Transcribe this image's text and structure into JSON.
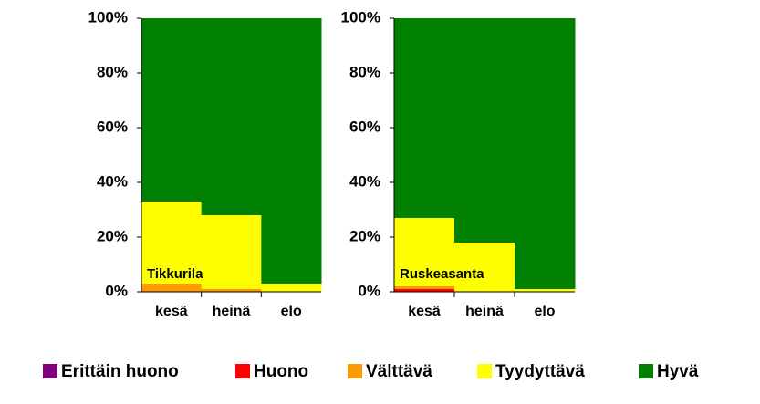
{
  "chart_data": [
    {
      "type": "bar",
      "stacked": true,
      "label": "Tikkurila",
      "categories": [
        "kesä",
        "heinä",
        "elo"
      ],
      "ylim": [
        0,
        100
      ],
      "yticks": [
        {
          "value": 0,
          "label": "0%"
        },
        {
          "value": 20,
          "label": "20%"
        },
        {
          "value": 40,
          "label": "40%"
        },
        {
          "value": 60,
          "label": "60%"
        },
        {
          "value": 80,
          "label": "80%"
        },
        {
          "value": 100,
          "label": "100%"
        }
      ],
      "series": [
        {
          "values": [
            0,
            0,
            0
          ]
        },
        {
          "values": [
            0,
            0,
            0
          ]
        },
        {
          "values": [
            3,
            1,
            0
          ]
        },
        {
          "values": [
            30,
            27,
            3
          ]
        },
        {
          "values": [
            67,
            72,
            97
          ]
        }
      ]
    },
    {
      "type": "bar",
      "stacked": true,
      "label": "Ruskeasanta",
      "categories": [
        "kesä",
        "heinä",
        "elo"
      ],
      "ylim": [
        0,
        100
      ],
      "yticks": [
        {
          "value": 0,
          "label": "0%"
        },
        {
          "value": 20,
          "label": "20%"
        },
        {
          "value": 40,
          "label": "40%"
        },
        {
          "value": 60,
          "label": "60%"
        },
        {
          "value": 80,
          "label": "80%"
        },
        {
          "value": 100,
          "label": "100%"
        }
      ],
      "series": [
        {
          "values": [
            0,
            0,
            0
          ]
        },
        {
          "values": [
            1,
            0,
            0
          ]
        },
        {
          "values": [
            1,
            0,
            0
          ]
        },
        {
          "values": [
            25,
            18,
            1
          ]
        },
        {
          "values": [
            73,
            82,
            99
          ]
        }
      ]
    }
  ],
  "legend": [
    {
      "name": "Erittäin huono",
      "color": "#800080"
    },
    {
      "name": "Huono",
      "color": "#ff0000"
    },
    {
      "name": "Välttävä",
      "color": "#ff9900"
    },
    {
      "name": "Tyydyttävä",
      "color": "#ffff00"
    },
    {
      "name": "Hyvä",
      "color": "#008000"
    }
  ]
}
